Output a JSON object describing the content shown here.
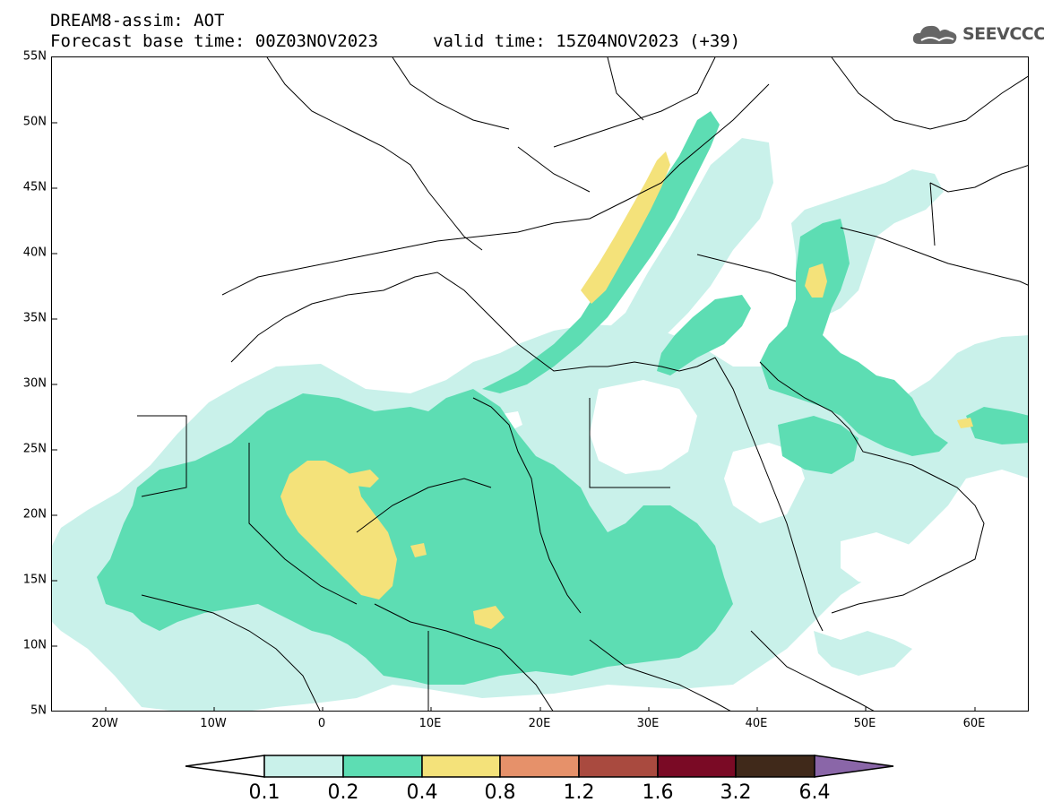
{
  "title": {
    "line1": "DREAM8-assim: AOT",
    "line2": "Forecast base time: 00Z03NOV2023",
    "valid": "valid time: 15Z04NOV2023 (+39)"
  },
  "logo": {
    "text": "SEEVCCC",
    "icon": "cloud-icon"
  },
  "map": {
    "projection": "lat-lon",
    "lon_range": [
      -25,
      65
    ],
    "lat_range": [
      5,
      55
    ],
    "lat_ticks": [
      "55N",
      "50N",
      "45N",
      "40N",
      "35N",
      "30N",
      "25N",
      "20N",
      "15N",
      "10N",
      "5N"
    ],
    "lon_ticks": [
      "20W",
      "10W",
      "0",
      "10E",
      "20E",
      "30E",
      "40E",
      "50E",
      "60E"
    ],
    "field": "AOT",
    "colors": {
      "0.1-0.2": "#c9f1ea",
      "0.2-0.4": "#5dddb3",
      "0.4-0.8": "#f4e27a",
      "0.8-1.2": "#e6916a",
      "1.2-1.6": "#a94a3f",
      "1.6-3.2": "#7a0a25",
      "3.2-6.4": "#40291a",
      ">6.4": "#8a66a8"
    }
  },
  "colorbar": {
    "labels": [
      "0.1",
      "0.2",
      "0.4",
      "0.8",
      "1.2",
      "1.6",
      "3.2",
      "6.4"
    ],
    "colors": [
      "#ffffff",
      "#c9f1ea",
      "#5dddb3",
      "#f4e27a",
      "#e6916a",
      "#a94a3f",
      "#7a0a25",
      "#40291a",
      "#8a66a8"
    ]
  }
}
